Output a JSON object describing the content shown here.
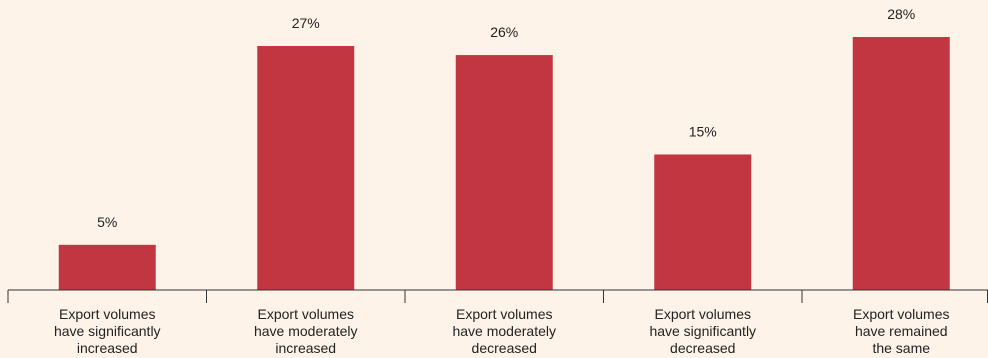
{
  "chart_data": {
    "type": "bar",
    "title": "",
    "xlabel": "",
    "ylabel": "",
    "categories": [
      [
        "Export volumes",
        "have significantly",
        "increased"
      ],
      [
        "Export volumes",
        "have moderately",
        "increased"
      ],
      [
        "Export volumes",
        "have moderately",
        "decreased"
      ],
      [
        "Export volumes",
        "have significantly",
        "decreased"
      ],
      [
        "Export volumes",
        "have remained",
        "the same"
      ]
    ],
    "values": [
      5,
      27,
      26,
      15,
      28
    ],
    "value_labels": [
      "5%",
      "27%",
      "26%",
      "15%",
      "28%"
    ],
    "ylim": [
      0,
      28
    ],
    "grid": false,
    "legend": "none",
    "colors": {
      "bar": "#c13640",
      "background": "#fdf3e8",
      "text": "#222222"
    }
  }
}
